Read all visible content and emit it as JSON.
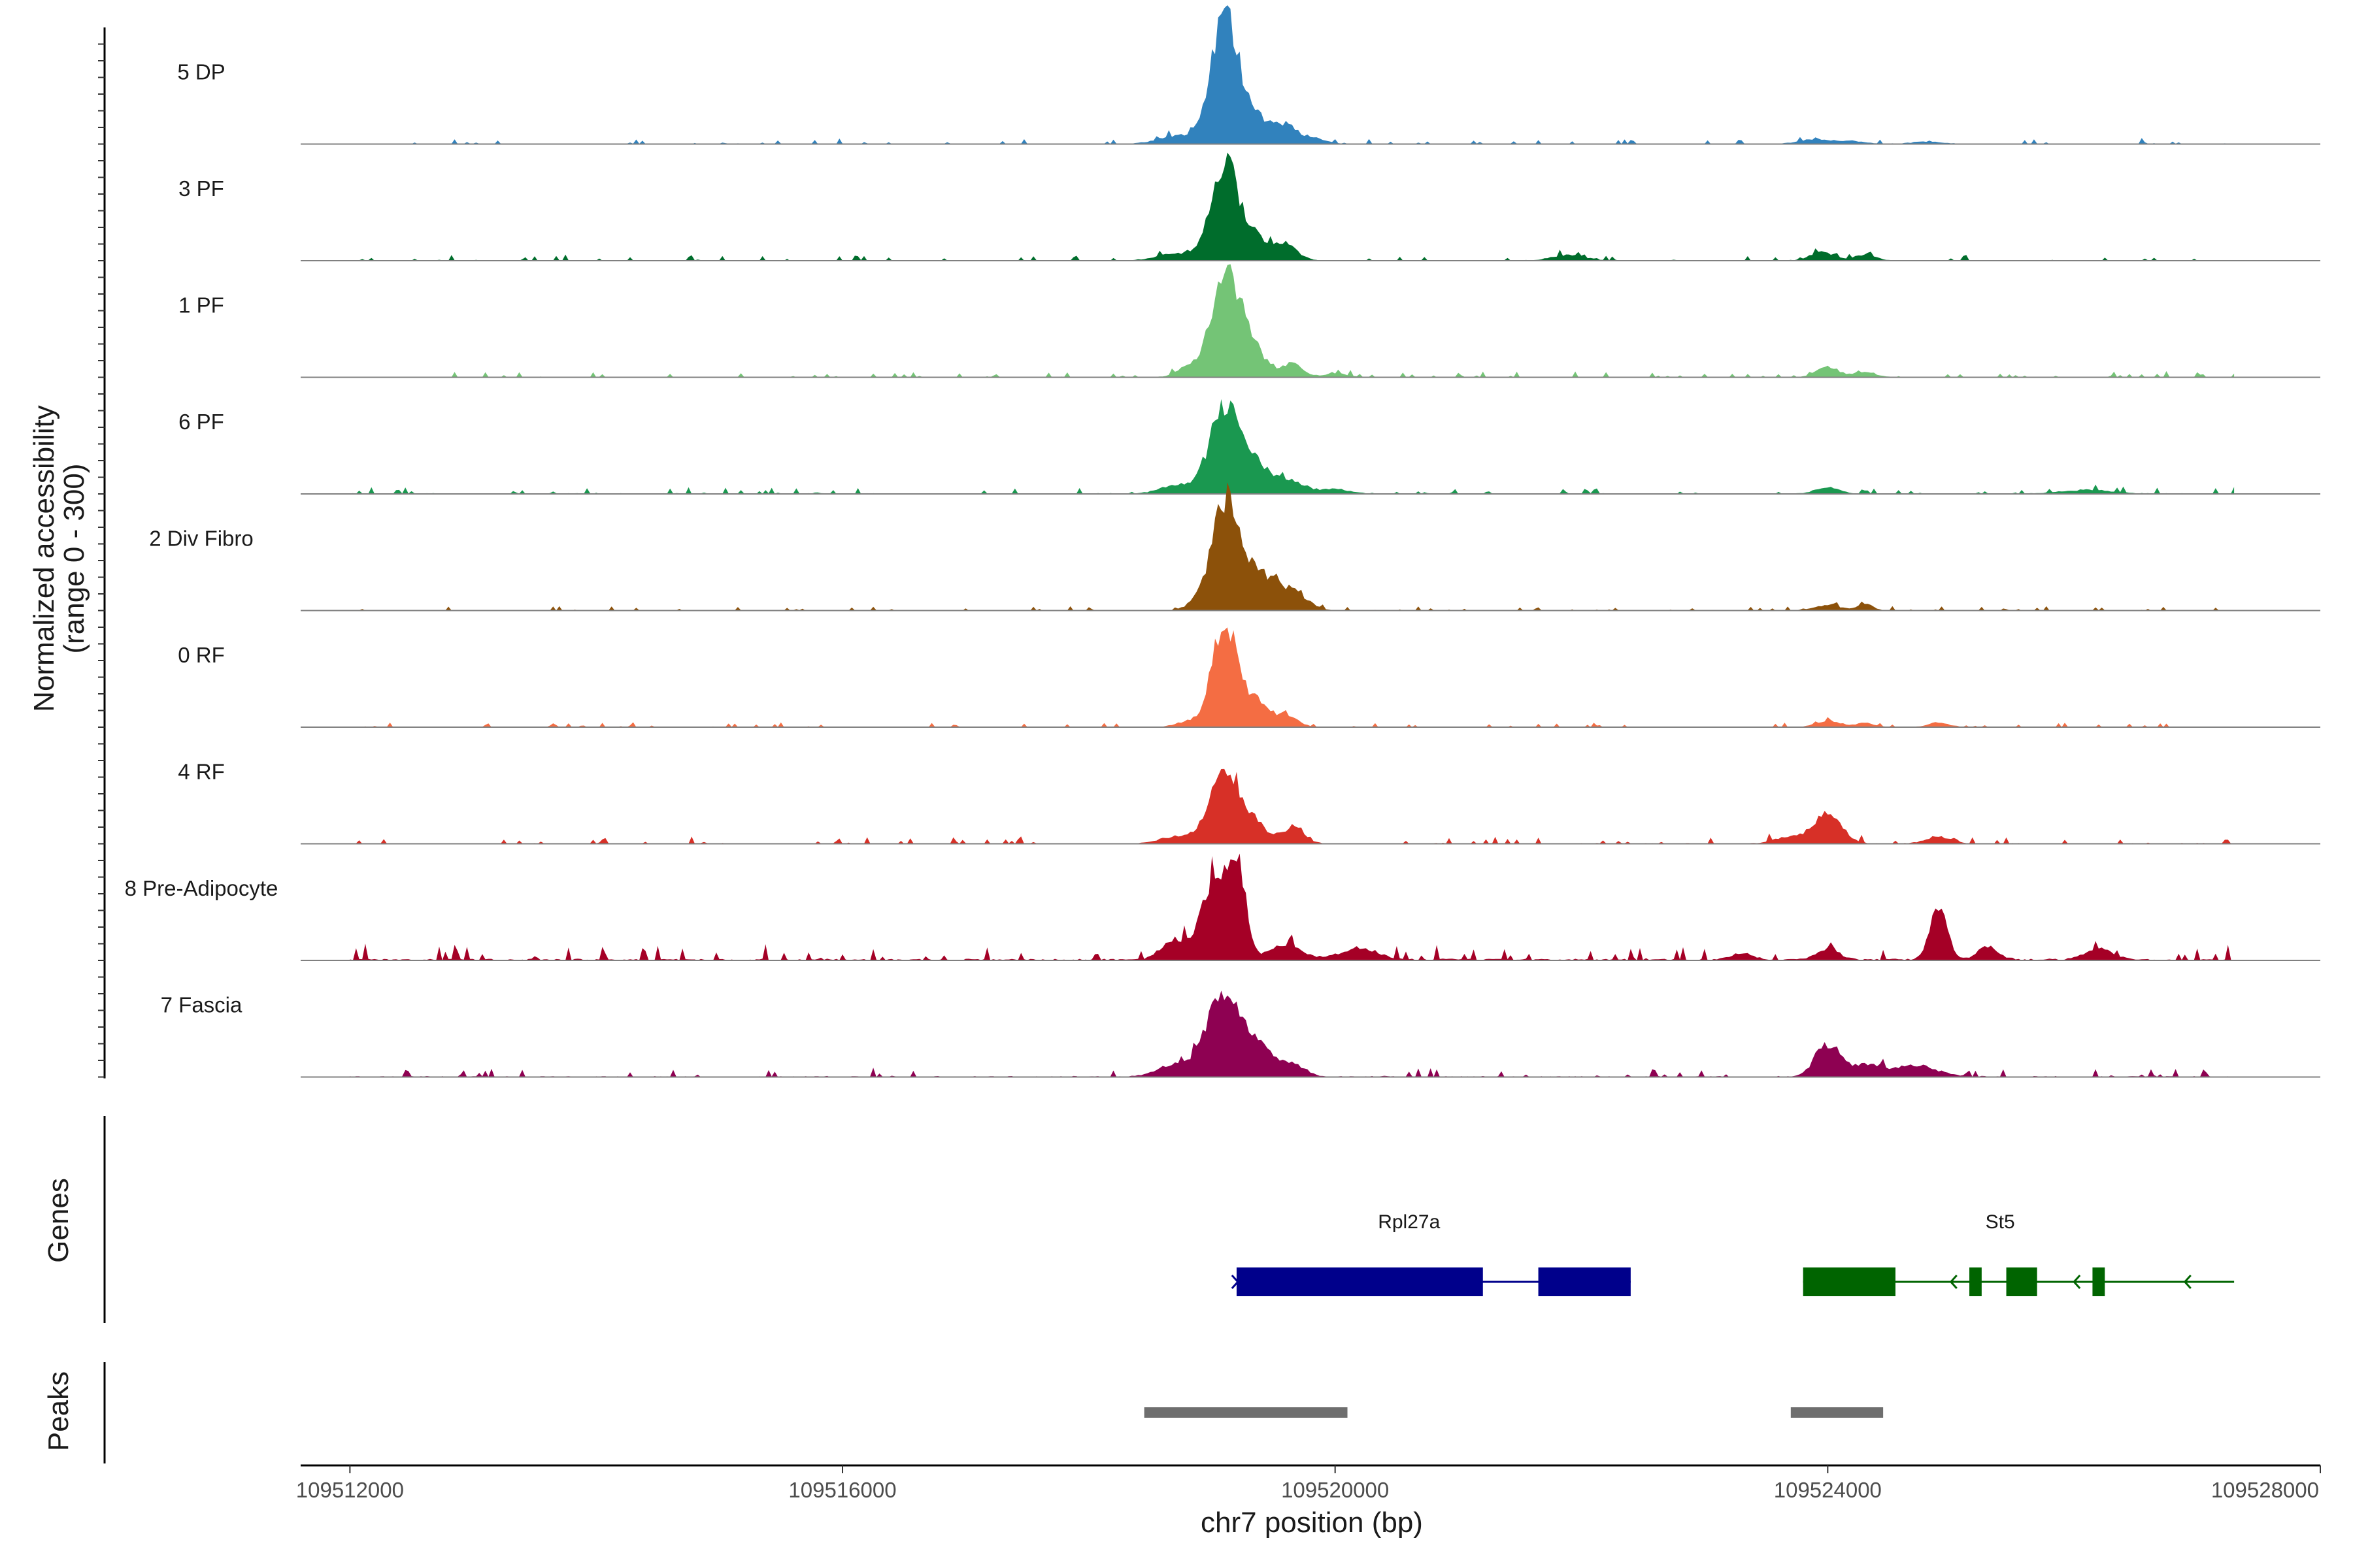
{
  "chart_data": {
    "type": "area",
    "title": "",
    "xlabel": "chr7 position (bp)",
    "ylabel": "Normalized accessibility",
    "ylabel_range": "(range 0 - 300)",
    "y_range": [
      0,
      300
    ],
    "x_range": [
      109511600,
      109528000
    ],
    "x_ticks": [
      109512000,
      109516000,
      109520000,
      109524000,
      109528000
    ],
    "x_tick_labels": [
      "109512000",
      "109516000",
      "109520000",
      "109524000",
      "109528000"
    ],
    "series": [
      {
        "name": "5 DP",
        "color": "#3182BD",
        "peaks": [
          [
            109519100,
            270,
            110
          ],
          [
            109519350,
            60,
            120
          ],
          [
            109519600,
            35,
            80
          ],
          [
            109518700,
            18,
            140
          ],
          [
            109519800,
            15,
            100
          ],
          [
            109523900,
            10,
            120
          ],
          [
            109524200,
            6,
            100
          ],
          [
            109524800,
            5,
            120
          ]
        ],
        "noise": 5
      },
      {
        "name": "3 PF",
        "color": "#006D2C",
        "peaks": [
          [
            109519100,
            210,
            110
          ],
          [
            109519350,
            50,
            110
          ],
          [
            109519600,
            35,
            90
          ],
          [
            109518700,
            15,
            140
          ],
          [
            109521900,
            12,
            130
          ],
          [
            109523950,
            18,
            90
          ],
          [
            109524300,
            12,
            90
          ]
        ],
        "noise": 5
      },
      {
        "name": "1 PF",
        "color": "#74C476",
        "peaks": [
          [
            109519100,
            210,
            110
          ],
          [
            109519300,
            70,
            120
          ],
          [
            109519650,
            30,
            80
          ],
          [
            109518800,
            20,
            90
          ],
          [
            109520000,
            8,
            100
          ],
          [
            109524000,
            22,
            90
          ],
          [
            109524300,
            10,
            90
          ]
        ],
        "noise": 5
      },
      {
        "name": "6 PF",
        "color": "#1A9850",
        "peaks": [
          [
            109519100,
            180,
            120
          ],
          [
            109519350,
            60,
            130
          ],
          [
            109519650,
            25,
            110
          ],
          [
            109518700,
            18,
            130
          ],
          [
            109520000,
            10,
            120
          ],
          [
            109524000,
            14,
            90
          ],
          [
            109526100,
            8,
            200
          ]
        ],
        "noise": 6
      },
      {
        "name": "2 Div Fibro",
        "color": "#8C510A",
        "peaks": [
          [
            109519100,
            230,
            100
          ],
          [
            109519350,
            90,
            130
          ],
          [
            109519650,
            40,
            120
          ],
          [
            109518900,
            20,
            90
          ],
          [
            109524000,
            12,
            100
          ],
          [
            109524300,
            14,
            60
          ]
        ],
        "noise": 4
      },
      {
        "name": "0 RF",
        "color": "#F46D43",
        "peaks": [
          [
            109519100,
            225,
            100
          ],
          [
            109519350,
            55,
            100
          ],
          [
            109519600,
            25,
            90
          ],
          [
            109518800,
            12,
            90
          ],
          [
            109524000,
            14,
            90
          ],
          [
            109524300,
            10,
            70
          ],
          [
            109524900,
            10,
            80
          ]
        ],
        "noise": 4
      },
      {
        "name": "4 RF",
        "color": "#D73027",
        "peaks": [
          [
            109519100,
            170,
            120
          ],
          [
            109519350,
            40,
            90
          ],
          [
            109519650,
            35,
            90
          ],
          [
            109518700,
            15,
            120
          ],
          [
            109524000,
            65,
            110
          ],
          [
            109523700,
            15,
            120
          ],
          [
            109524900,
            15,
            100
          ]
        ],
        "noise": 6
      },
      {
        "name": "8 Pre-Adipocyte",
        "color": "#A50026",
        "peaks": [
          [
            109519000,
            160,
            90
          ],
          [
            109519200,
            230,
            70
          ],
          [
            109518700,
            45,
            110
          ],
          [
            109519600,
            35,
            130
          ],
          [
            109520200,
            25,
            150
          ],
          [
            109524000,
            25,
            90
          ],
          [
            109524900,
            110,
            70
          ],
          [
            109525300,
            30,
            80
          ],
          [
            109526200,
            25,
            110
          ],
          [
            109523300,
            15,
            80
          ]
        ],
        "noise": 14
      },
      {
        "name": "7 Fascia",
        "color": "#8E0152",
        "peaks": [
          [
            109519100,
            185,
            140
          ],
          [
            109519400,
            50,
            100
          ],
          [
            109519650,
            30,
            100
          ],
          [
            109518700,
            25,
            140
          ],
          [
            109524000,
            70,
            100
          ],
          [
            109524300,
            25,
            110
          ],
          [
            109524700,
            25,
            180
          ]
        ],
        "noise": 8
      }
    ],
    "genes": [
      {
        "name": "Rpl27a",
        "start": 109519200,
        "end": 109522400,
        "strand": "+",
        "color": "#00008B",
        "exons": [
          [
            109519200,
            109521200
          ],
          [
            109521650,
            109522400
          ]
        ]
      },
      {
        "name": "St5",
        "start": 109523800,
        "end": 109527300,
        "strand": "-",
        "color": "#006400",
        "exons": [
          [
            109523800,
            109524550
          ],
          [
            109525150,
            109525250
          ],
          [
            109525450,
            109525700
          ],
          [
            109526150,
            109526250
          ]
        ]
      }
    ],
    "peaks_track": [
      {
        "start": 109518450,
        "end": 109520100
      },
      {
        "start": 109523700,
        "end": 109524450
      }
    ],
    "panel_labels": {
      "genes": "Genes",
      "peaks": "Peaks"
    }
  }
}
